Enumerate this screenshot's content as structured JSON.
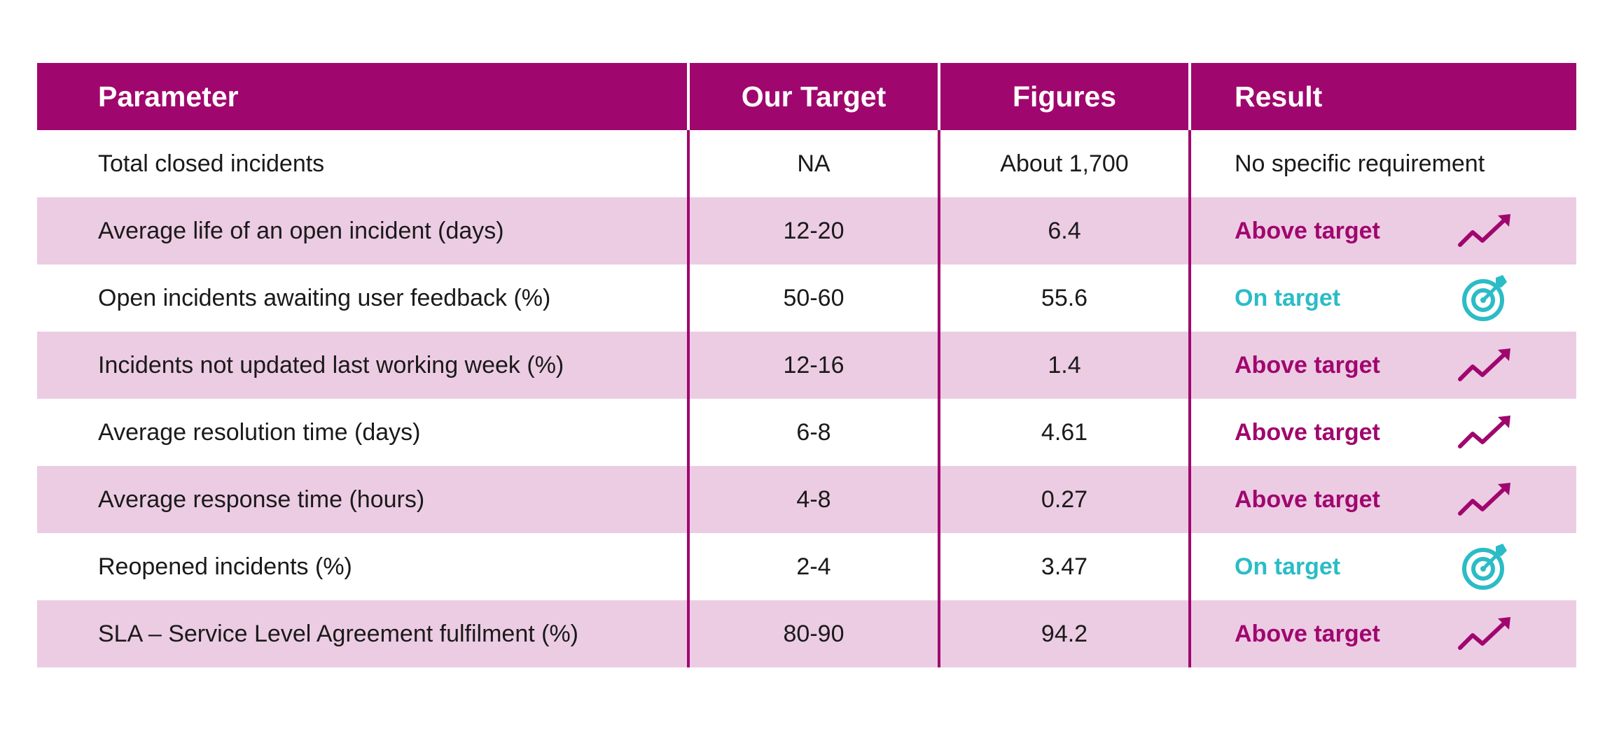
{
  "table": {
    "headers": {
      "parameter": "Parameter",
      "target": "Our Target",
      "figures": "Figures",
      "result": "Result"
    },
    "rows": [
      {
        "parameter": "Total closed incidents",
        "target": "NA",
        "figures": "About 1,700",
        "result": "No specific requirement",
        "status": "none",
        "icon": ""
      },
      {
        "parameter": "Average life of an open incident (days)",
        "target": "12-20",
        "figures": "6.4",
        "result": "Above target",
        "status": "above",
        "icon": "trend-up-icon"
      },
      {
        "parameter": "Open incidents awaiting user feedback (%)",
        "target": "50-60",
        "figures": "55.6",
        "result": "On target",
        "status": "on",
        "icon": "target-icon"
      },
      {
        "parameter": "Incidents not updated last working week (%)",
        "target": "12-16",
        "figures": "1.4",
        "result": "Above target",
        "status": "above",
        "icon": "trend-up-icon"
      },
      {
        "parameter": "Average resolution time (days)",
        "target": "6-8",
        "figures": "4.61",
        "result": "Above target",
        "status": "above",
        "icon": "trend-up-icon"
      },
      {
        "parameter": "Average response time (hours)",
        "target": "4-8",
        "figures": "0.27",
        "result": "Above target",
        "status": "above",
        "icon": "trend-up-icon"
      },
      {
        "parameter": "Reopened incidents (%)",
        "target": "2-4",
        "figures": "3.47",
        "result": "On target",
        "status": "on",
        "icon": "target-icon"
      },
      {
        "parameter": "SLA – Service Level Agreement fulfilment (%)",
        "target": "80-90",
        "figures": "94.2",
        "result": "Above target",
        "status": "above",
        "icon": "trend-up-icon"
      }
    ]
  },
  "colors": {
    "header_bg": "#a0076e",
    "shaded_row": "#ecccE3",
    "above_target": "#a0076e",
    "on_target": "#2bbcc6"
  }
}
